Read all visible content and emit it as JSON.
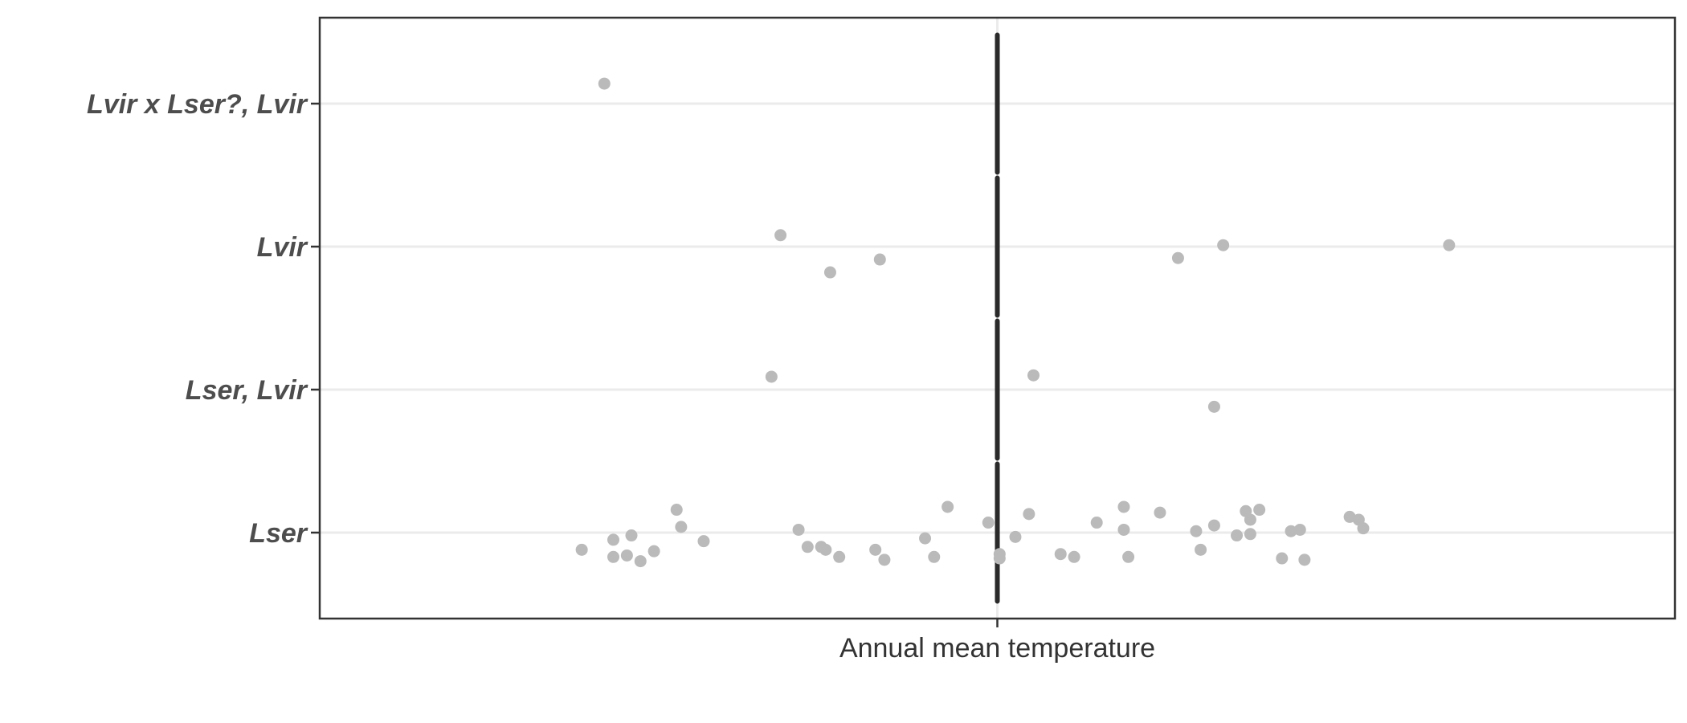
{
  "chart_data": {
    "type": "scatter",
    "title": "",
    "xlabel": "Annual mean temperature",
    "ylabel": "",
    "x_tick_labels": [
      ""
    ],
    "categories": [
      "Lser",
      "Lser, Lvir",
      "Lvir",
      "Lvir x Lser?, Lvir"
    ],
    "xlim": [
      -1.5,
      1.5
    ],
    "grid": true,
    "reference_line": {
      "x": 0,
      "label": ""
    },
    "series": [
      {
        "category": "Lvir x Lser?, Lvir",
        "points": [
          {
            "x": -0.87,
            "y": 0.14
          }
        ]
      },
      {
        "category": "Lvir",
        "points": [
          {
            "x": -0.48,
            "y": 0.08
          },
          {
            "x": -0.37,
            "y": -0.18
          },
          {
            "x": -0.26,
            "y": -0.09
          },
          {
            "x": 0.4,
            "y": -0.08
          },
          {
            "x": 0.5,
            "y": 0.01
          },
          {
            "x": 1.0,
            "y": 0.01
          }
        ]
      },
      {
        "category": "Lser, Lvir",
        "points": [
          {
            "x": -0.5,
            "y": 0.09
          },
          {
            "x": 0.08,
            "y": 0.1
          },
          {
            "x": 0.48,
            "y": -0.12
          }
        ]
      },
      {
        "category": "Lser",
        "points": [
          {
            "x": -0.92,
            "y": -0.12
          },
          {
            "x": -0.85,
            "y": -0.05
          },
          {
            "x": -0.85,
            "y": -0.17
          },
          {
            "x": -0.81,
            "y": -0.02
          },
          {
            "x": -0.82,
            "y": -0.16
          },
          {
            "x": -0.79,
            "y": -0.2
          },
          {
            "x": -0.76,
            "y": -0.13
          },
          {
            "x": -0.71,
            "y": 0.16
          },
          {
            "x": -0.7,
            "y": 0.04
          },
          {
            "x": -0.65,
            "y": -0.06
          },
          {
            "x": -0.44,
            "y": 0.02
          },
          {
            "x": -0.42,
            "y": -0.1
          },
          {
            "x": -0.39,
            "y": -0.1
          },
          {
            "x": -0.38,
            "y": -0.12
          },
          {
            "x": -0.35,
            "y": -0.17
          },
          {
            "x": -0.27,
            "y": -0.12
          },
          {
            "x": -0.25,
            "y": -0.19
          },
          {
            "x": -0.16,
            "y": -0.04
          },
          {
            "x": -0.14,
            "y": -0.17
          },
          {
            "x": -0.11,
            "y": 0.18
          },
          {
            "x": -0.02,
            "y": 0.07
          },
          {
            "x": 0.005,
            "y": -0.15
          },
          {
            "x": 0.005,
            "y": -0.18
          },
          {
            "x": 0.04,
            "y": -0.03
          },
          {
            "x": 0.07,
            "y": 0.13
          },
          {
            "x": 0.14,
            "y": -0.15
          },
          {
            "x": 0.17,
            "y": -0.17
          },
          {
            "x": 0.22,
            "y": 0.07
          },
          {
            "x": 0.28,
            "y": 0.18
          },
          {
            "x": 0.28,
            "y": 0.02
          },
          {
            "x": 0.29,
            "y": -0.17
          },
          {
            "x": 0.36,
            "y": 0.14
          },
          {
            "x": 0.44,
            "y": 0.01
          },
          {
            "x": 0.45,
            "y": -0.12
          },
          {
            "x": 0.48,
            "y": 0.05
          },
          {
            "x": 0.53,
            "y": -0.02
          },
          {
            "x": 0.55,
            "y": 0.15
          },
          {
            "x": 0.56,
            "y": 0.09
          },
          {
            "x": 0.56,
            "y": -0.01
          },
          {
            "x": 0.58,
            "y": 0.16
          },
          {
            "x": 0.63,
            "y": -0.18
          },
          {
            "x": 0.65,
            "y": 0.01
          },
          {
            "x": 0.67,
            "y": 0.02
          },
          {
            "x": 0.68,
            "y": -0.19
          },
          {
            "x": 0.78,
            "y": 0.11
          },
          {
            "x": 0.8,
            "y": 0.09
          },
          {
            "x": 0.81,
            "y": 0.03
          }
        ]
      }
    ]
  }
}
